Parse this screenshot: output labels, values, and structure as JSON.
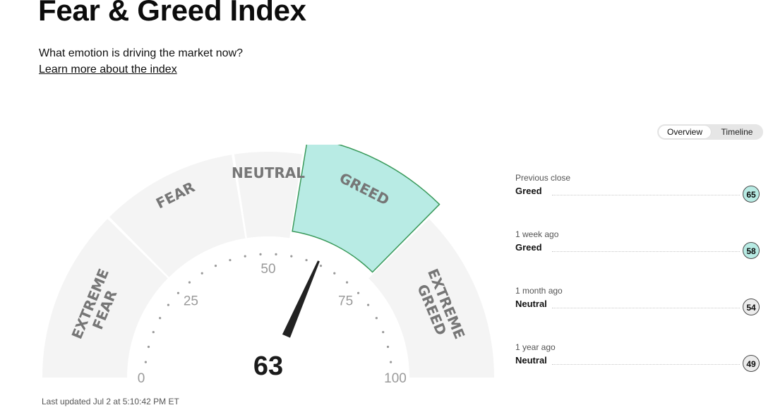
{
  "page": {
    "title": "Fear & Greed Index",
    "subtitle": "What emotion is driving the market now?",
    "learn_more": "Learn more about the index",
    "last_updated": "Last updated Jul 2 at 5:10:42 PM ET"
  },
  "view_toggle": {
    "options": [
      "Overview",
      "Timeline"
    ],
    "selected": "Overview"
  },
  "gauge": {
    "value": 63,
    "value_label": "63",
    "range": [
      0,
      100
    ],
    "active_segment": "GREED",
    "segments": [
      {
        "label_lines": [
          "EXTREME",
          "FEAR"
        ],
        "from": 0,
        "to": 25
      },
      {
        "label_lines": [
          "FEAR"
        ],
        "from": 25,
        "to": 45
      },
      {
        "label_lines": [
          "NEUTRAL"
        ],
        "from": 45,
        "to": 55
      },
      {
        "label_lines": [
          "GREED"
        ],
        "from": 55,
        "to": 75
      },
      {
        "label_lines": [
          "EXTREME",
          "GREED"
        ],
        "from": 75,
        "to": 100
      }
    ],
    "tick_labels": [
      "0",
      "25",
      "50",
      "75",
      "100"
    ],
    "colors": {
      "segment": "#f4f4f4",
      "active_fill": "#b8ebe4",
      "active_stroke": "#3a9a5b",
      "needle": "#222222"
    }
  },
  "history": [
    {
      "period": "Previous close",
      "rating": "Greed",
      "score": "65",
      "tone": "greed"
    },
    {
      "period": "1 week ago",
      "rating": "Greed",
      "score": "58",
      "tone": "greed"
    },
    {
      "period": "1 month ago",
      "rating": "Neutral",
      "score": "54",
      "tone": "neutral"
    },
    {
      "period": "1 year ago",
      "rating": "Neutral",
      "score": "49",
      "tone": "neutral"
    }
  ]
}
